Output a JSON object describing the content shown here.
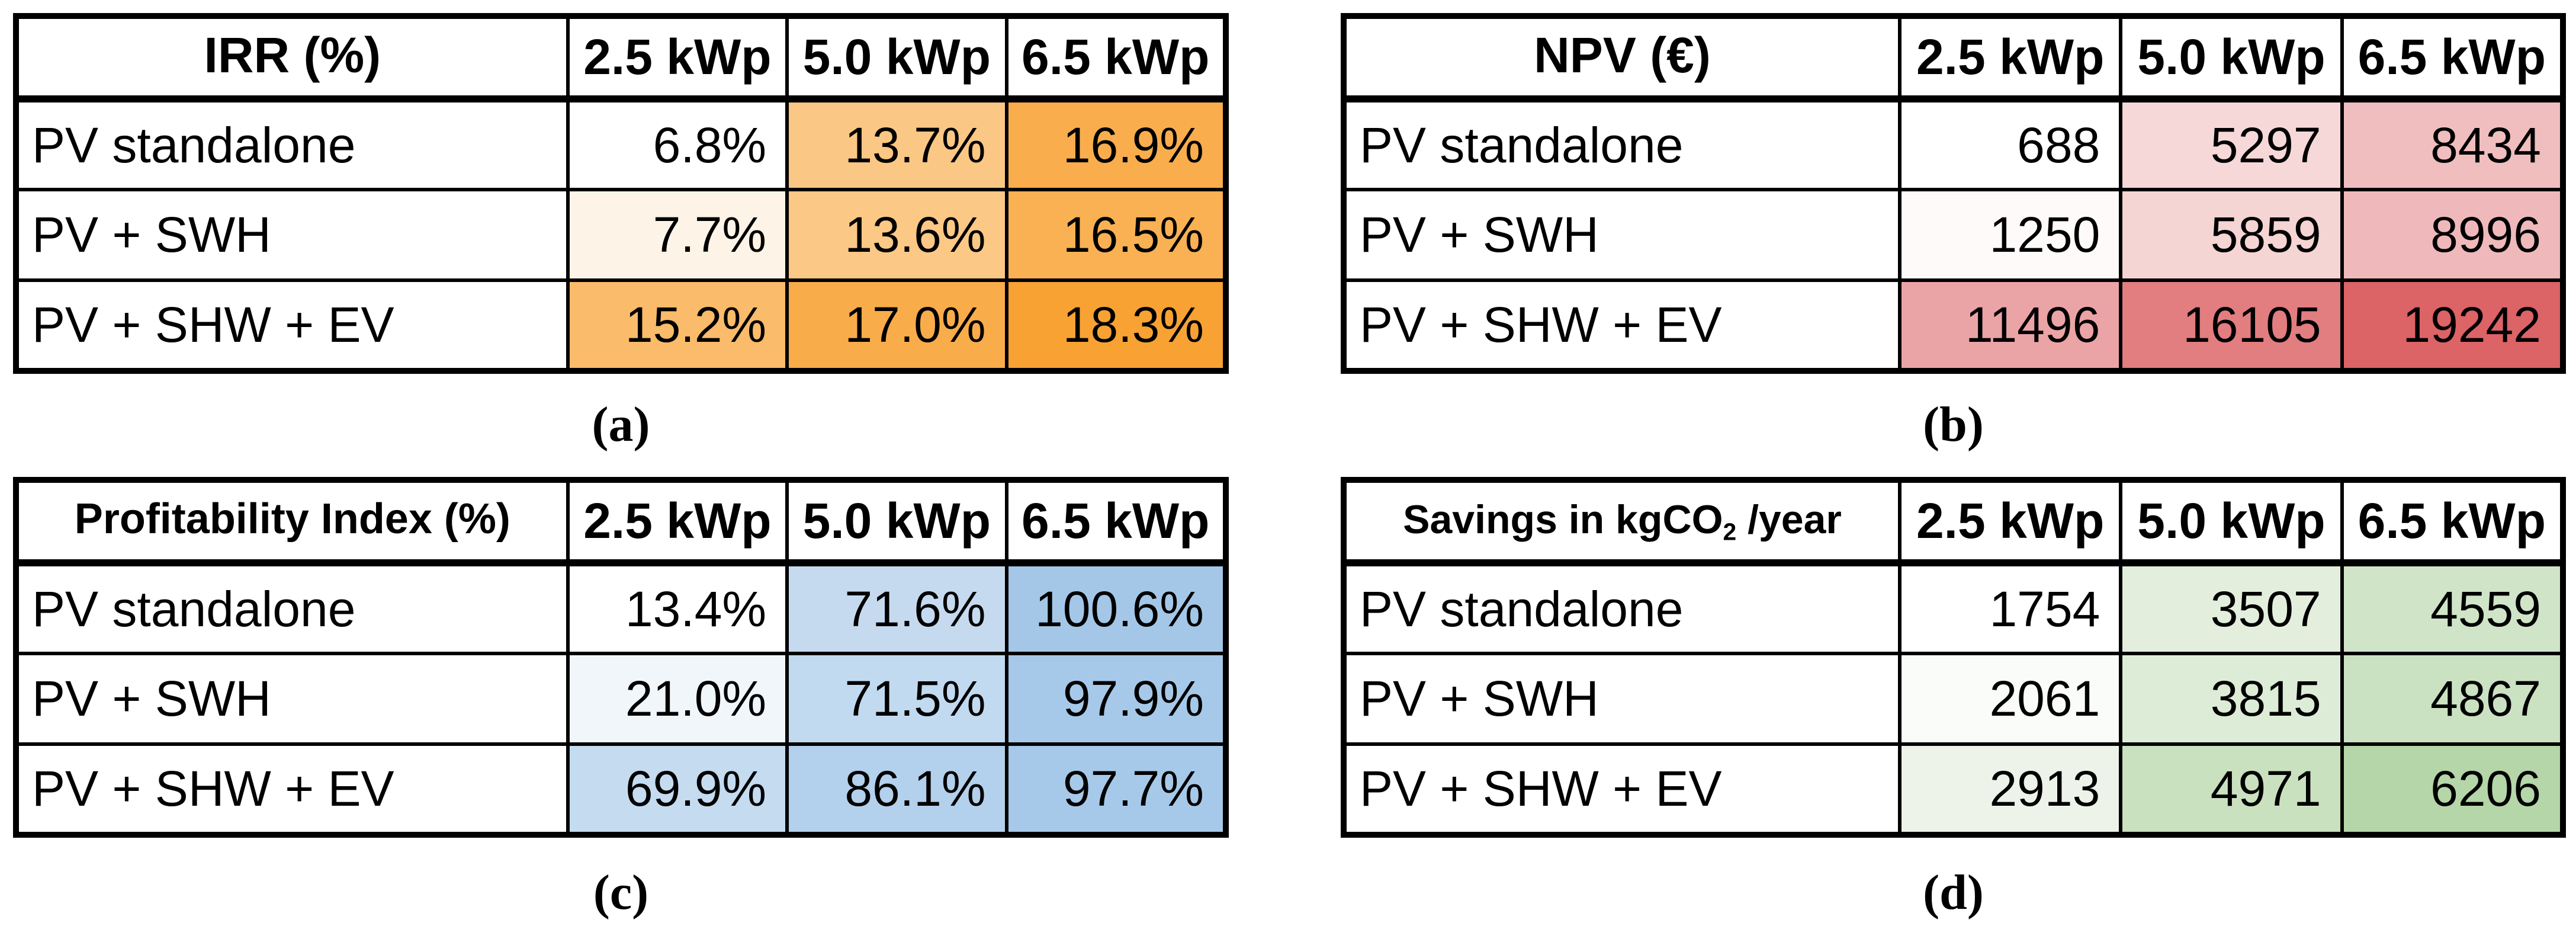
{
  "figure": {
    "background": "#FFFFFF"
  },
  "captions": [
    "(a)",
    "(b)",
    "(c)",
    "(d)"
  ],
  "tables": [
    {
      "name": "IRR",
      "title": {
        "pre": "IRR (%)",
        "sub": "",
        "post": ""
      },
      "columns": [
        "2.5 kWp",
        "5.0 kWp",
        "6.5 kWp"
      ],
      "accent": "#F8A233",
      "rows": [
        {
          "label": "PV standalone",
          "cells": [
            {
              "v": "6.8%",
              "bg": "#FFFFFF"
            },
            {
              "v": "13.7%",
              "bg": "#FBC785"
            },
            {
              "v": "16.9%",
              "bg": "#F9AD4C"
            }
          ]
        },
        {
          "label": "PV + SWH",
          "cells": [
            {
              "v": "7.7%",
              "bg": "#FDF4E7"
            },
            {
              "v": "13.6%",
              "bg": "#FBC886"
            },
            {
              "v": "16.5%",
              "bg": "#F9B153"
            }
          ]
        },
        {
          "label": "PV + SHW + EV",
          "cells": [
            {
              "v": "15.2%",
              "bg": "#FABB6A"
            },
            {
              "v": "17.0%",
              "bg": "#F9AC4A"
            },
            {
              "v": "18.3%",
              "bg": "#F8A233"
            }
          ]
        }
      ]
    },
    {
      "name": "NPV",
      "title": {
        "pre": "NPV (€)",
        "sub": "",
        "post": ""
      },
      "columns": [
        "2.5 kWp",
        "5.0 kWp",
        "6.5 kWp"
      ],
      "accent": "#DC6366",
      "rows": [
        {
          "label": "PV standalone",
          "cells": [
            {
              "v": "688",
              "bg": "#FFFFFF"
            },
            {
              "v": "5297",
              "bg": "#F6D8D9"
            },
            {
              "v": "8434",
              "bg": "#F0BEBF"
            }
          ]
        },
        {
          "label": "PV + SWH",
          "cells": [
            {
              "v": "1250",
              "bg": "#FEFAFA"
            },
            {
              "v": "5859",
              "bg": "#F5D4D4"
            },
            {
              "v": "8996",
              "bg": "#EFB9BB"
            }
          ]
        },
        {
          "label": "PV + SHW + EV",
          "cells": [
            {
              "v": "11496",
              "bg": "#EBA4A6"
            },
            {
              "v": "16105",
              "bg": "#E27D80"
            },
            {
              "v": "19242",
              "bg": "#DC6366"
            }
          ]
        }
      ]
    },
    {
      "name": "Profitability Index",
      "title": {
        "pre": "Profitability Index (%)",
        "sub": "",
        "post": ""
      },
      "columns": [
        "2.5 kWp",
        "5.0 kWp",
        "6.5 kWp"
      ],
      "accent": "#A4C7E8",
      "rows": [
        {
          "label": "PV standalone",
          "cells": [
            {
              "v": "13.4%",
              "bg": "#FFFFFF"
            },
            {
              "v": "71.6%",
              "bg": "#C6DAEF"
            },
            {
              "v": "100.6%",
              "bg": "#A4C7E8"
            }
          ]
        },
        {
          "label": "PV + SWH",
          "cells": [
            {
              "v": "21.0%",
              "bg": "#F1F6FB"
            },
            {
              "v": "71.5%",
              "bg": "#C2DAF0"
            },
            {
              "v": "97.9%",
              "bg": "#A7C9E9"
            }
          ]
        },
        {
          "label": "PV + SHW + EV",
          "cells": [
            {
              "v": "69.9%",
              "bg": "#C4DBF0"
            },
            {
              "v": "86.1%",
              "bg": "#B3D0EC"
            },
            {
              "v": "97.7%",
              "bg": "#A7C9E9"
            }
          ]
        }
      ]
    },
    {
      "name": "CO2 Savings",
      "title": {
        "pre": "Savings in kgCO",
        "sub": "2",
        "post": " /year"
      },
      "columns": [
        "2.5 kWp",
        "5.0 kWp",
        "6.5 kWp"
      ],
      "accent": "#B5D6A8",
      "rows": [
        {
          "label": "PV standalone",
          "cells": [
            {
              "v": "1754",
              "bg": "#FFFFFF"
            },
            {
              "v": "3507",
              "bg": "#E4EEDD"
            },
            {
              "v": "4559",
              "bg": "#D0E5C8"
            }
          ]
        },
        {
          "label": "PV + SWH",
          "cells": [
            {
              "v": "2061",
              "bg": "#FAFCF9"
            },
            {
              "v": "3815",
              "bg": "#DDECD7"
            },
            {
              "v": "4867",
              "bg": "#CBE2C2"
            }
          ]
        },
        {
          "label": "PV + SHW + EV",
          "cells": [
            {
              "v": "2913",
              "bg": "#EDF3E8"
            },
            {
              "v": "4971",
              "bg": "#CAE1C0"
            },
            {
              "v": "6206",
              "bg": "#B5D6A8"
            }
          ]
        }
      ]
    }
  ],
  "chart_data": [
    {
      "type": "table",
      "title": "IRR (%)",
      "columns": [
        "2.5 kWp",
        "5.0 kWp",
        "6.5 kWp"
      ],
      "row_labels": [
        "PV standalone",
        "PV + SWH",
        "PV + SHW + EV"
      ],
      "values_percent": [
        [
          6.8,
          13.7,
          16.9
        ],
        [
          7.7,
          13.6,
          16.5
        ],
        [
          15.2,
          17.0,
          18.3
        ]
      ],
      "heatmap": "white-to-orange linear color scale, min 6.8 -> white, max 18.3 -> #F8A233",
      "caption": "(a)"
    },
    {
      "type": "table",
      "title": "NPV (€)",
      "columns": [
        "2.5 kWp",
        "5.0 kWp",
        "6.5 kWp"
      ],
      "row_labels": [
        "PV standalone",
        "PV + SWH",
        "PV + SHW + EV"
      ],
      "values_eur": [
        [
          688,
          5297,
          8434
        ],
        [
          1250,
          5859,
          8996
        ],
        [
          11496,
          16105,
          19242
        ]
      ],
      "heatmap": "white-to-red linear color scale, min 688 -> white, max 19242 -> #DC6366",
      "caption": "(b)"
    },
    {
      "type": "table",
      "title": "Profitability Index (%)",
      "columns": [
        "2.5 kWp",
        "5.0 kWp",
        "6.5 kWp"
      ],
      "row_labels": [
        "PV standalone",
        "PV + SWH",
        "PV + SHW + EV"
      ],
      "values_percent": [
        [
          13.4,
          71.6,
          100.6
        ],
        [
          21.0,
          71.5,
          97.9
        ],
        [
          69.9,
          86.1,
          97.7
        ]
      ],
      "heatmap": "white-to-blue linear color scale, min 13.4 -> white, max 100.6 -> #A4C7E8",
      "caption": "(c)"
    },
    {
      "type": "table",
      "title": "Savings in kgCO2/year",
      "columns": [
        "2.5 kWp",
        "5.0 kWp",
        "6.5 kWp"
      ],
      "row_labels": [
        "PV standalone",
        "PV + SWH",
        "PV + SHW + EV"
      ],
      "values_kgco2_per_year": [
        [
          1754,
          3507,
          4559
        ],
        [
          2061,
          3815,
          4867
        ],
        [
          2913,
          4971,
          6206
        ]
      ],
      "heatmap": "white-to-green linear color scale, min 1754 -> white, max 6206 -> #B5D6A8",
      "caption": "(d)"
    }
  ]
}
